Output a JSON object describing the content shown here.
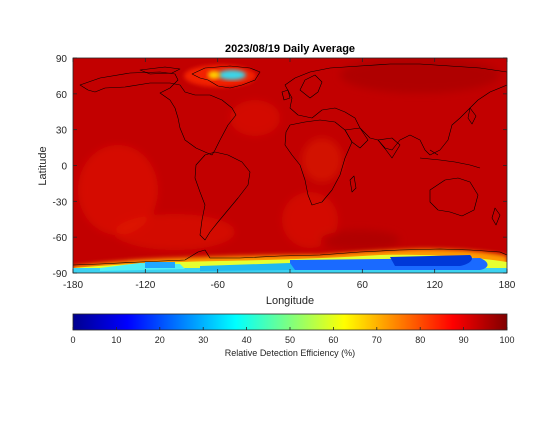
{
  "chart_data": {
    "type": "heatmap",
    "title": "2023/08/19 Daily Average",
    "xlabel": "Longitude",
    "ylabel": "Latitude",
    "xlim": [
      -180,
      180
    ],
    "ylim": [
      -90,
      90
    ],
    "xticks": [
      "-180",
      "-120",
      "-60",
      "0",
      "60",
      "120",
      "180"
    ],
    "yticks": [
      "90",
      "60",
      "30",
      "0",
      "-30",
      "-60",
      "-90"
    ],
    "colorbar": {
      "label": "Relative Detection Efficiency (%)",
      "ticks": [
        "0",
        "10",
        "20",
        "30",
        "40",
        "50",
        "60",
        "70",
        "80",
        "90",
        "100"
      ],
      "range": [
        0,
        100
      ],
      "colormap": "jet"
    },
    "field_regions": [
      {
        "region": "global background",
        "value": 97
      },
      {
        "region": "ocean patches (southern/eastern Pacific, Atlantic)",
        "value": 92
      },
      {
        "region": "Greenland",
        "value": 45
      },
      {
        "region": "Antarctic coast 0-150E",
        "value": 22
      },
      {
        "region": "Antarctic coast 150W-70W",
        "value": 40
      },
      {
        "region": "southern ocean edge -75 to -80",
        "value": 70
      }
    ]
  }
}
